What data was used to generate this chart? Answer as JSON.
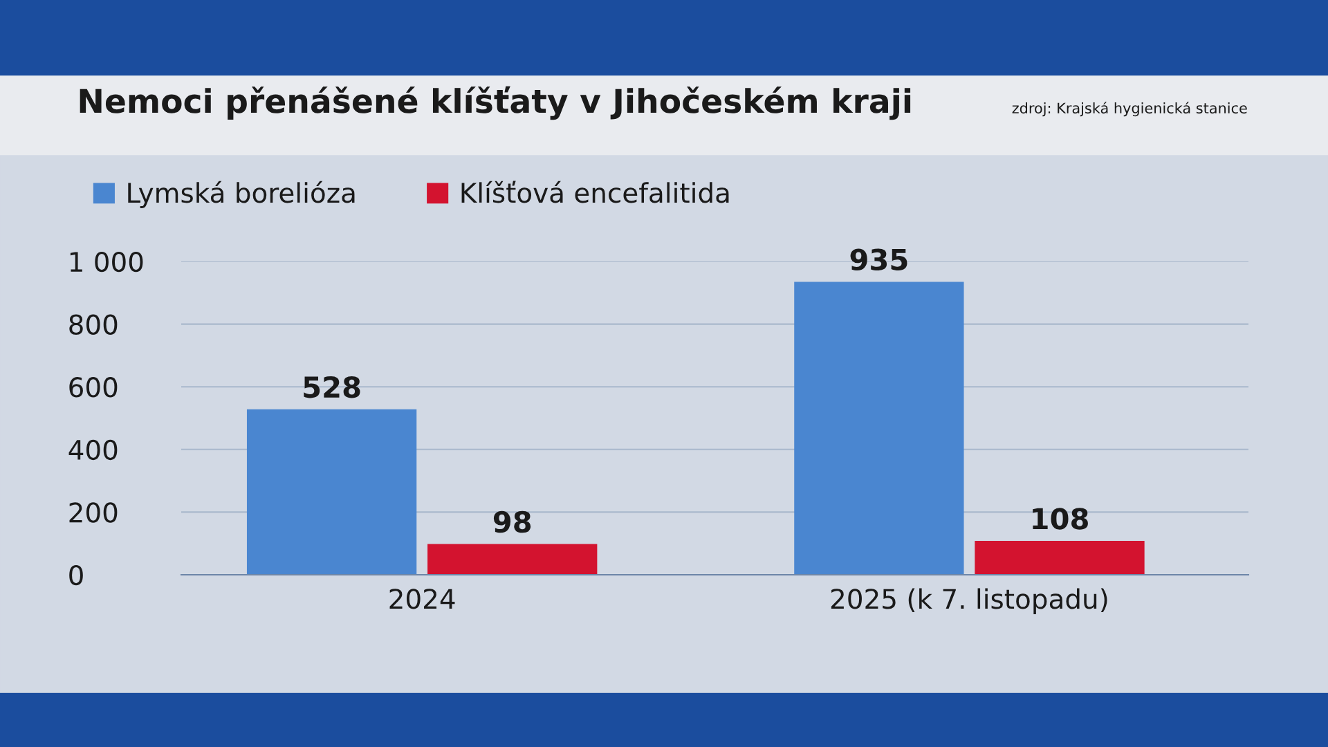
{
  "chart_data": {
    "type": "bar",
    "title": "Nemoci přenášené klíšťaty v Jihočeském kraji",
    "annotations": [
      "zdroj: Krajská hygienická stanice"
    ],
    "categories": [
      "2024",
      "2025 (k 7. listopadu)"
    ],
    "series": [
      {
        "name": "Lymská borelióza",
        "color": "#4a86d0",
        "values": [
          528,
          935
        ]
      },
      {
        "name": "Klíšťová encefalitida",
        "color": "#d3132f",
        "values": [
          98,
          108
        ]
      }
    ],
    "ylim": [
      0,
      1000
    ],
    "yticks": [
      0,
      200,
      400,
      600,
      800,
      {
        "value": 1000,
        "label": "1 000"
      }
    ],
    "grid": "y",
    "legend": "top left",
    "data_labels": true
  }
}
